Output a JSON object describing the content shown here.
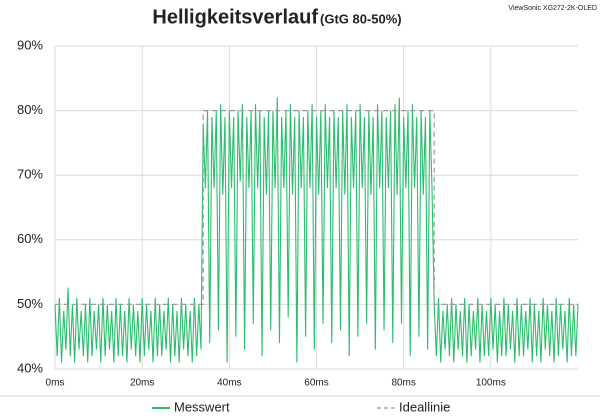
{
  "chart_data": {
    "type": "line",
    "title": "Helligkeitsverlauf",
    "subtitle": "(GtG 80-50%)",
    "source": "ViewSonic XG272-2K-OLED",
    "xlim": [
      0,
      120
    ],
    "xticks": [
      {
        "value": 0,
        "label": "0ms"
      },
      {
        "value": 20,
        "label": "20ms"
      },
      {
        "value": 40,
        "label": "40ms"
      },
      {
        "value": 60,
        "label": "60ms"
      },
      {
        "value": 80,
        "label": "80ms"
      },
      {
        "value": 100,
        "label": "100ms"
      }
    ],
    "ylim": [
      40,
      90
    ],
    "yticks": [
      {
        "value": 40,
        "label": "40%"
      },
      {
        "value": 50,
        "label": "50%"
      },
      {
        "value": 60,
        "label": "60%"
      },
      {
        "value": 70,
        "label": "70%"
      },
      {
        "value": 80,
        "label": "80%"
      },
      {
        "value": 90,
        "label": "90%"
      }
    ],
    "grid": true,
    "legend": "bottom",
    "series": [
      {
        "name": "Messwert",
        "color": "#2dbd6e",
        "dashed": false,
        "x": [
          0,
          0.5,
          1,
          1.5,
          2,
          2.5,
          3,
          3.5,
          4,
          4.5,
          5,
          5.5,
          6,
          6.5,
          7,
          7.5,
          8,
          8.5,
          9,
          9.5,
          10,
          10.5,
          11,
          11.5,
          12,
          12.5,
          13,
          13.5,
          14,
          14.5,
          15,
          15.5,
          16,
          16.5,
          17,
          17.5,
          18,
          18.5,
          19,
          19.5,
          20,
          20.5,
          21,
          21.5,
          22,
          22.5,
          23,
          23.5,
          24,
          24.5,
          25,
          25.5,
          26,
          26.5,
          27,
          27.5,
          28,
          28.5,
          29,
          29.5,
          30,
          30.5,
          31,
          31.5,
          32,
          32.5,
          33,
          33.5,
          34,
          34.5,
          35,
          35.5,
          36,
          36.5,
          37,
          37.5,
          38,
          38.5,
          39,
          39.5,
          40,
          40.5,
          41,
          41.5,
          42,
          42.5,
          43,
          43.5,
          44,
          44.5,
          45,
          45.5,
          46,
          46.5,
          47,
          47.5,
          48,
          48.5,
          49,
          49.5,
          50,
          50.5,
          51,
          51.5,
          52,
          52.5,
          53,
          53.5,
          54,
          54.5,
          55,
          55.5,
          56,
          56.5,
          57,
          57.5,
          58,
          58.5,
          59,
          59.5,
          60,
          60.5,
          61,
          61.5,
          62,
          62.5,
          63,
          63.5,
          64,
          64.5,
          65,
          65.5,
          66,
          66.5,
          67,
          67.5,
          68,
          68.5,
          69,
          69.5,
          70,
          70.5,
          71,
          71.5,
          72,
          72.5,
          73,
          73.5,
          74,
          74.5,
          75,
          75.5,
          76,
          76.5,
          77,
          77.5,
          78,
          78.5,
          79,
          79.5,
          80,
          80.5,
          81,
          81.5,
          82,
          82.5,
          83,
          83.5,
          84,
          84.5,
          85,
          85.5,
          86,
          86.5,
          87,
          87.5,
          88,
          88.5,
          89,
          89.5,
          90,
          90.5,
          91,
          91.5,
          92,
          92.5,
          93,
          93.5,
          94,
          94.5,
          95,
          95.5,
          96,
          96.5,
          97,
          97.5,
          98,
          98.5,
          99,
          99.5,
          100,
          100.5,
          101,
          101.5,
          102,
          102.5,
          103,
          103.5,
          104,
          104.5,
          105,
          105.5,
          106,
          106.5,
          107,
          107.5,
          108,
          108.5,
          109,
          109.5,
          110,
          110.5,
          111,
          111.5,
          112,
          112.5,
          113,
          113.5,
          114,
          114.5,
          115,
          115.5,
          116,
          116.5,
          117,
          117.5,
          118,
          118.5,
          119,
          119.5,
          120
        ],
        "values": [
          50,
          42,
          51,
          41,
          49,
          43,
          52.6,
          42,
          50,
          41,
          51,
          43,
          49,
          42,
          50,
          41,
          51,
          42,
          49,
          43,
          50,
          41,
          51,
          42,
          50,
          43,
          49,
          41,
          51,
          42,
          50,
          42,
          49,
          41,
          51,
          43,
          50,
          42,
          49,
          41,
          51,
          42,
          50,
          43,
          49,
          41,
          51,
          42,
          50,
          42,
          49,
          43,
          51,
          41,
          50,
          42,
          49,
          41,
          51,
          43,
          50,
          42,
          49,
          41,
          51,
          42,
          50,
          43,
          78,
          68,
          80,
          44,
          79,
          68,
          80,
          46,
          81,
          67,
          79,
          41,
          80,
          68,
          79,
          45,
          80,
          69,
          81,
          43,
          79,
          68,
          80,
          47,
          81,
          68,
          80,
          42,
          79,
          67,
          80,
          46,
          80,
          68,
          82,
          44,
          79,
          68,
          80,
          48,
          81,
          67,
          79,
          41,
          80,
          68,
          79,
          45,
          80,
          68,
          81,
          43,
          79,
          67,
          80,
          47,
          81,
          68,
          79,
          44,
          80,
          68,
          79,
          46,
          80,
          67,
          81,
          42,
          79,
          68,
          80,
          45,
          81,
          68,
          79,
          47,
          80,
          67,
          79,
          43,
          81,
          68,
          80,
          46,
          79,
          68,
          80,
          44,
          81,
          67,
          82,
          47,
          79,
          68,
          80,
          42,
          81,
          68,
          79,
          45,
          80,
          67,
          79,
          43,
          80,
          68,
          50,
          42,
          51,
          41,
          49,
          43,
          50,
          42,
          51,
          41,
          50,
          43,
          49,
          42,
          51,
          41,
          50,
          42,
          49,
          43,
          51,
          41,
          50,
          42,
          49,
          42,
          51,
          43,
          50,
          41,
          49,
          42,
          51,
          42,
          50,
          43,
          49,
          41,
          51,
          42,
          50,
          42,
          49,
          43,
          51,
          41,
          50,
          42,
          49,
          41,
          51,
          43,
          50,
          42,
          49,
          41,
          51,
          42,
          50,
          43,
          49,
          41,
          51,
          42,
          50,
          42,
          50
        ]
      },
      {
        "name": "Ideallinie",
        "color": "#9a9a9a",
        "dashed": true,
        "x": [
          0,
          34,
          34,
          87,
          87,
          120
        ],
        "values": [
          50,
          50,
          80,
          80,
          50,
          50
        ]
      }
    ]
  }
}
